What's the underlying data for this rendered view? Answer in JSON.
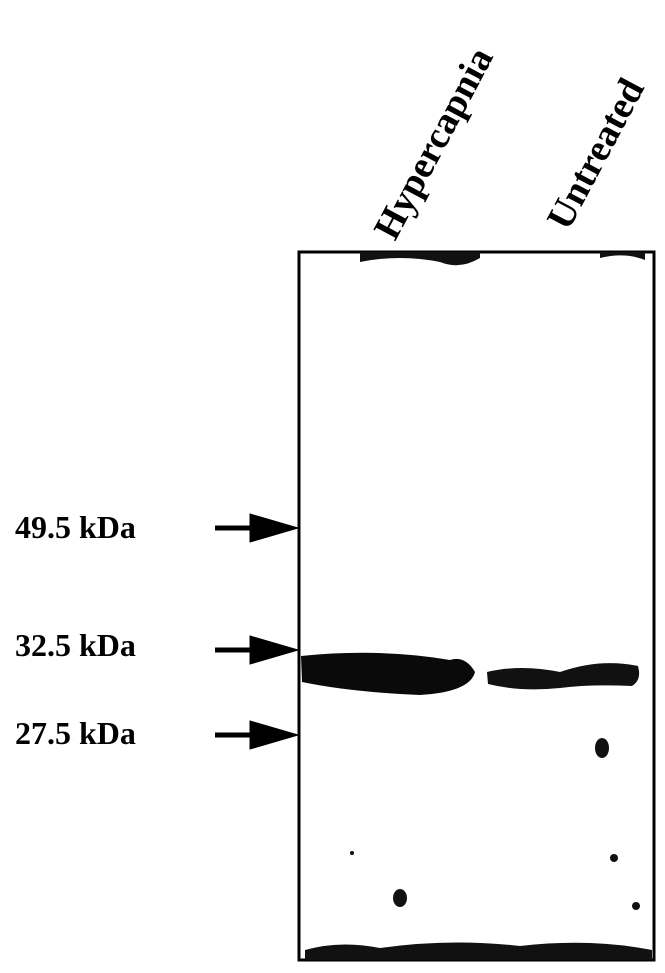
{
  "lanes": [
    "Hypercapnia",
    "Untreated"
  ],
  "markers": [
    "49.5 kDa",
    "32.5 kDa",
    "27.5 kDa"
  ]
}
